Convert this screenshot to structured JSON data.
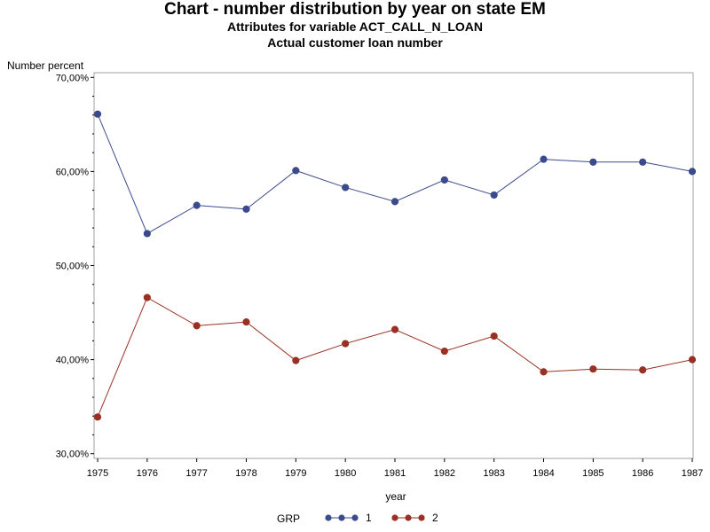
{
  "chart_data": {
    "type": "line",
    "title": "Chart - number distribution by year on state EM",
    "subtitle": "Attributes for variable ACT_CALL_N_LOAN",
    "subtitle2": "Actual customer loan number",
    "ylabel": "Number percent",
    "xlabel": "year",
    "categories": [
      "1975",
      "1976",
      "1977",
      "1978",
      "1979",
      "1980",
      "1981",
      "1982",
      "1983",
      "1984",
      "1985",
      "1986",
      "1987"
    ],
    "ylim": [
      29.5,
      70.5
    ],
    "yticks": [
      30,
      40,
      50,
      60,
      70
    ],
    "ytick_labels": [
      "30,00%",
      "40,00%",
      "50,00%",
      "60,00%",
      "70,00%"
    ],
    "grid": false,
    "legend": {
      "title": "GRP",
      "placement": "bottom"
    },
    "series": [
      {
        "name": "1",
        "color": "#3b4a8c",
        "values": [
          66.1,
          53.4,
          56.4,
          56.0,
          60.1,
          58.3,
          56.8,
          59.1,
          57.5,
          61.3,
          61.0,
          61.0,
          60.0
        ]
      },
      {
        "name": "2",
        "color": "#9a3023",
        "values": [
          33.9,
          46.6,
          43.6,
          44.0,
          39.9,
          41.7,
          43.2,
          40.9,
          42.5,
          38.7,
          39.0,
          38.9,
          40.0
        ]
      }
    ]
  }
}
